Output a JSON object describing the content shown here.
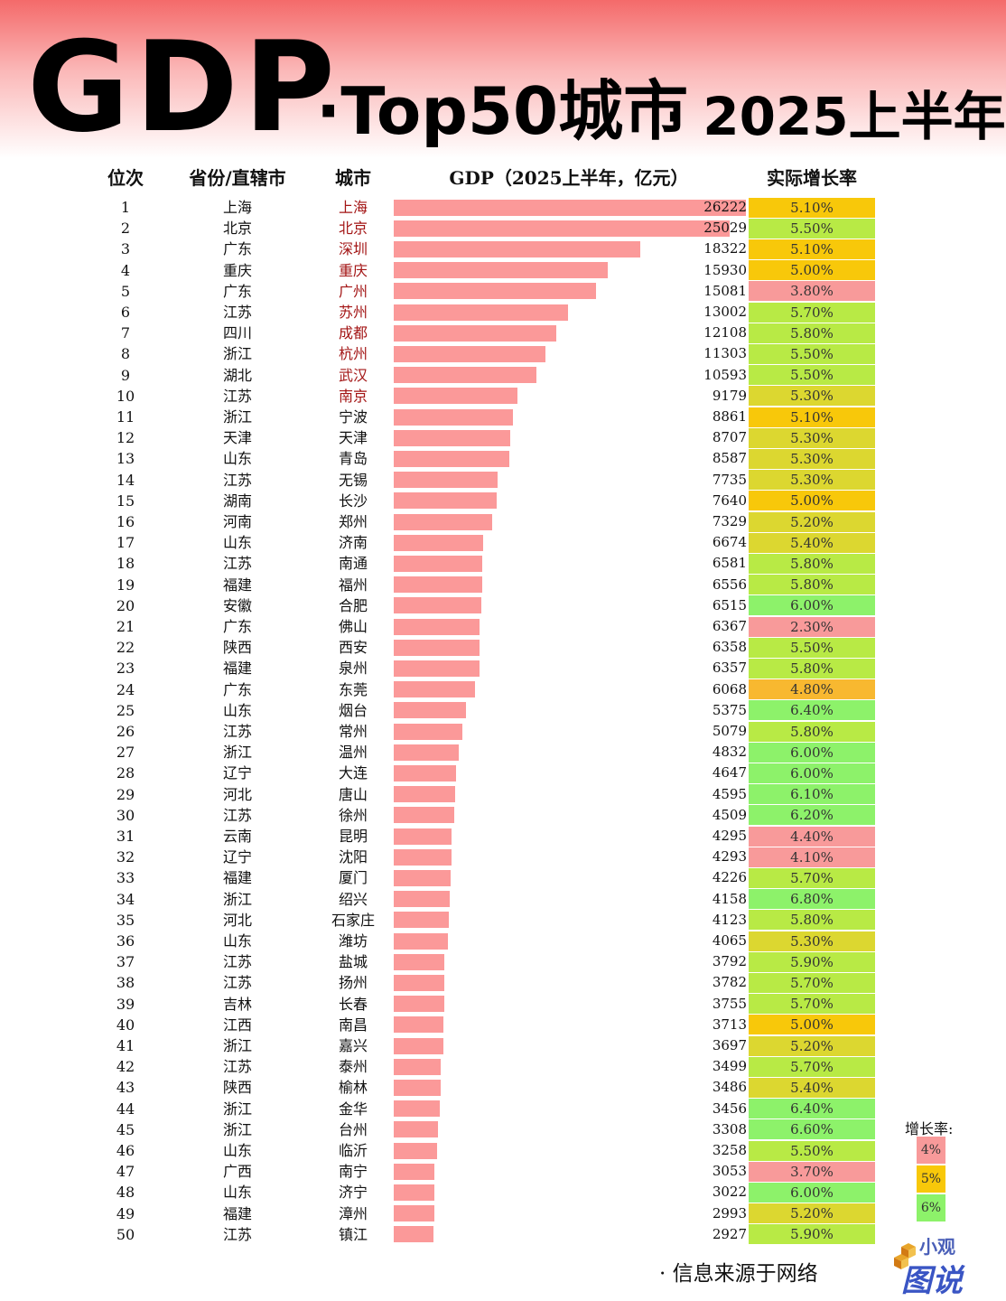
{
  "title": {
    "gdp": "GDP",
    "top": "·Top50城市",
    "period": "· 2025上半年"
  },
  "headers": {
    "rank": "位次",
    "province": "省份/直辖市",
    "city": "城市",
    "gdp": "GDP（2025上半年，亿元）",
    "growth": "实际增长率"
  },
  "colors": {
    "bar": "#fb9999",
    "top10_city": "#a31515",
    "growth_low": "#f89a9a",
    "growth_mid": "#f8c80a",
    "growth_high": "#8df26a"
  },
  "chart_data": {
    "type": "bar",
    "orientation": "horizontal",
    "title": "GDP ·Top50城市 · 2025上半年",
    "xlabel": "GDP（2025上半年，亿元）",
    "xlim": [
      0,
      26222
    ],
    "rows": [
      {
        "rank": "1",
        "province": "上海",
        "city": "上海",
        "gdp": 26222,
        "growth": "5.10%"
      },
      {
        "rank": "2",
        "province": "北京",
        "city": "北京",
        "gdp": 25029,
        "growth": "5.50%"
      },
      {
        "rank": "3",
        "province": "广东",
        "city": "深圳",
        "gdp": 18322,
        "growth": "5.10%"
      },
      {
        "rank": "4",
        "province": "重庆",
        "city": "重庆",
        "gdp": 15930,
        "growth": "5.00%"
      },
      {
        "rank": "5",
        "province": "广东",
        "city": "广州",
        "gdp": 15081,
        "growth": "3.80%"
      },
      {
        "rank": "6",
        "province": "江苏",
        "city": "苏州",
        "gdp": 13002,
        "growth": "5.70%"
      },
      {
        "rank": "7",
        "province": "四川",
        "city": "成都",
        "gdp": 12108,
        "growth": "5.80%"
      },
      {
        "rank": "8",
        "province": "浙江",
        "city": "杭州",
        "gdp": 11303,
        "growth": "5.50%"
      },
      {
        "rank": "9",
        "province": "湖北",
        "city": "武汉",
        "gdp": 10593,
        "growth": "5.50%"
      },
      {
        "rank": "10",
        "province": "江苏",
        "city": "南京",
        "gdp": 9179,
        "growth": "5.30%"
      },
      {
        "rank": "11",
        "province": "浙江",
        "city": "宁波",
        "gdp": 8861,
        "growth": "5.10%"
      },
      {
        "rank": "12",
        "province": "天津",
        "city": "天津",
        "gdp": 8707,
        "growth": "5.30%"
      },
      {
        "rank": "13",
        "province": "山东",
        "city": "青岛",
        "gdp": 8587,
        "growth": "5.30%"
      },
      {
        "rank": "14",
        "province": "江苏",
        "city": "无锡",
        "gdp": 7735,
        "growth": "5.30%"
      },
      {
        "rank": "15",
        "province": "湖南",
        "city": "长沙",
        "gdp": 7640,
        "growth": "5.00%"
      },
      {
        "rank": "16",
        "province": "河南",
        "city": "郑州",
        "gdp": 7329,
        "growth": "5.20%"
      },
      {
        "rank": "17",
        "province": "山东",
        "city": "济南",
        "gdp": 6674,
        "growth": "5.40%"
      },
      {
        "rank": "18",
        "province": "江苏",
        "city": "南通",
        "gdp": 6581,
        "growth": "5.80%"
      },
      {
        "rank": "19",
        "province": "福建",
        "city": "福州",
        "gdp": 6556,
        "growth": "5.80%"
      },
      {
        "rank": "20",
        "province": "安徽",
        "city": "合肥",
        "gdp": 6515,
        "growth": "6.00%"
      },
      {
        "rank": "21",
        "province": "广东",
        "city": "佛山",
        "gdp": 6367,
        "growth": "2.30%"
      },
      {
        "rank": "22",
        "province": "陕西",
        "city": "西安",
        "gdp": 6358,
        "growth": "5.50%"
      },
      {
        "rank": "23",
        "province": "福建",
        "city": "泉州",
        "gdp": 6357,
        "growth": "5.80%"
      },
      {
        "rank": "24",
        "province": "广东",
        "city": "东莞",
        "gdp": 6068,
        "growth": "4.80%"
      },
      {
        "rank": "25",
        "province": "山东",
        "city": "烟台",
        "gdp": 5375,
        "growth": "6.40%"
      },
      {
        "rank": "26",
        "province": "江苏",
        "city": "常州",
        "gdp": 5079,
        "growth": "5.80%"
      },
      {
        "rank": "27",
        "province": "浙江",
        "city": "温州",
        "gdp": 4832,
        "growth": "6.00%"
      },
      {
        "rank": "28",
        "province": "辽宁",
        "city": "大连",
        "gdp": 4647,
        "growth": "6.00%"
      },
      {
        "rank": "29",
        "province": "河北",
        "city": "唐山",
        "gdp": 4595,
        "growth": "6.10%"
      },
      {
        "rank": "30",
        "province": "江苏",
        "city": "徐州",
        "gdp": 4509,
        "growth": "6.20%"
      },
      {
        "rank": "31",
        "province": "云南",
        "city": "昆明",
        "gdp": 4295,
        "growth": "4.40%"
      },
      {
        "rank": "32",
        "province": "辽宁",
        "city": "沈阳",
        "gdp": 4293,
        "growth": "4.10%"
      },
      {
        "rank": "33",
        "province": "福建",
        "city": "厦门",
        "gdp": 4226,
        "growth": "5.70%"
      },
      {
        "rank": "34",
        "province": "浙江",
        "city": "绍兴",
        "gdp": 4158,
        "growth": "6.80%"
      },
      {
        "rank": "35",
        "province": "河北",
        "city": "石家庄",
        "gdp": 4123,
        "growth": "5.80%"
      },
      {
        "rank": "36",
        "province": "山东",
        "city": "潍坊",
        "gdp": 4065,
        "growth": "5.30%"
      },
      {
        "rank": "37",
        "province": "江苏",
        "city": "盐城",
        "gdp": 3792,
        "growth": "5.90%"
      },
      {
        "rank": "38",
        "province": "江苏",
        "city": "扬州",
        "gdp": 3782,
        "growth": "5.70%"
      },
      {
        "rank": "39",
        "province": "吉林",
        "city": "长春",
        "gdp": 3755,
        "growth": "5.70%"
      },
      {
        "rank": "40",
        "province": "江西",
        "city": "南昌",
        "gdp": 3713,
        "growth": "5.00%"
      },
      {
        "rank": "41",
        "province": "浙江",
        "city": "嘉兴",
        "gdp": 3697,
        "growth": "5.20%"
      },
      {
        "rank": "42",
        "province": "江苏",
        "city": "泰州",
        "gdp": 3499,
        "growth": "5.70%"
      },
      {
        "rank": "43",
        "province": "陕西",
        "city": "榆林",
        "gdp": 3486,
        "growth": "5.40%"
      },
      {
        "rank": "44",
        "province": "浙江",
        "city": "金华",
        "gdp": 3456,
        "growth": "6.40%"
      },
      {
        "rank": "45",
        "province": "浙江",
        "city": "台州",
        "gdp": 3308,
        "growth": "6.60%"
      },
      {
        "rank": "46",
        "province": "山东",
        "city": "临沂",
        "gdp": 3258,
        "growth": "5.50%"
      },
      {
        "rank": "47",
        "province": "广西",
        "city": "南宁",
        "gdp": 3053,
        "growth": "3.70%"
      },
      {
        "rank": "48",
        "province": "山东",
        "city": "济宁",
        "gdp": 3022,
        "growth": "6.00%"
      },
      {
        "rank": "49",
        "province": "福建",
        "city": "漳州",
        "gdp": 2993,
        "growth": "5.20%"
      },
      {
        "rank": "50",
        "province": "江苏",
        "city": "镇江",
        "gdp": 2927,
        "growth": "5.90%"
      }
    ]
  },
  "legend": {
    "title": "增长率:",
    "items": [
      {
        "label": "4%",
        "value": 4
      },
      {
        "label": "5%",
        "value": 5
      },
      {
        "label": "6%",
        "value": 6
      }
    ]
  },
  "footer": {
    "source": "· 信息来源于网络",
    "logo_small": "小观",
    "logo_big": "图说"
  }
}
